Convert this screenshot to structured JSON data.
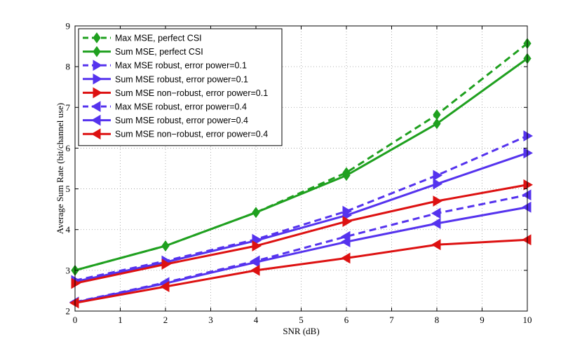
{
  "chart_data": {
    "type": "line",
    "xlabel": "SNR (dB)",
    "ylabel": "Average Sum Rate (bit/channel use)",
    "xlim": [
      0,
      10
    ],
    "ylim": [
      2,
      9
    ],
    "xticks": [
      "0",
      "1",
      "2",
      "3",
      "4",
      "5",
      "6",
      "7",
      "8",
      "9",
      "10"
    ],
    "yticks": [
      "2",
      "3",
      "4",
      "5",
      "6",
      "7",
      "8",
      "9"
    ],
    "grid": true,
    "legend_position": "top-left",
    "x": [
      0,
      2,
      4,
      6,
      8,
      10
    ],
    "series": [
      {
        "name": "Max MSE, perfect CSI",
        "color": "#1fa01f",
        "dash": true,
        "marker": "diamond",
        "values": [
          3.0,
          3.6,
          4.42,
          5.4,
          6.82,
          8.57
        ]
      },
      {
        "name": "Sum MSE, perfect CSI",
        "color": "#1fa01f",
        "dash": false,
        "marker": "diamond",
        "values": [
          3.0,
          3.6,
          4.42,
          5.33,
          6.6,
          8.2
        ]
      },
      {
        "name": "Max MSE robust, error power=0.1",
        "color": "#5533ee",
        "dash": true,
        "marker": "triangle-right",
        "values": [
          2.75,
          3.23,
          3.76,
          4.45,
          5.33,
          6.3
        ]
      },
      {
        "name": "Sum MSE robust, error power=0.1",
        "color": "#5533ee",
        "dash": false,
        "marker": "triangle-right",
        "values": [
          2.72,
          3.2,
          3.73,
          4.35,
          5.12,
          5.88
        ]
      },
      {
        "name": "Sum MSE non−robust, error power=0.1",
        "color": "#dd1111",
        "dash": false,
        "marker": "triangle-right",
        "values": [
          2.68,
          3.15,
          3.6,
          4.2,
          4.7,
          5.1
        ]
      },
      {
        "name": "Max MSE robust, error power=0.4",
        "color": "#5533ee",
        "dash": true,
        "marker": "triangle-left",
        "values": [
          2.22,
          2.7,
          3.23,
          3.83,
          4.4,
          4.85
        ]
      },
      {
        "name": "Sum MSE robust, error power=0.4",
        "color": "#5533ee",
        "dash": false,
        "marker": "triangle-left",
        "values": [
          2.21,
          2.68,
          3.2,
          3.7,
          4.15,
          4.55
        ]
      },
      {
        "name": "Sum MSE non−robust, error power=0.4",
        "color": "#dd1111",
        "dash": false,
        "marker": "triangle-left",
        "values": [
          2.2,
          2.6,
          3.0,
          3.3,
          3.63,
          3.75
        ]
      }
    ]
  }
}
